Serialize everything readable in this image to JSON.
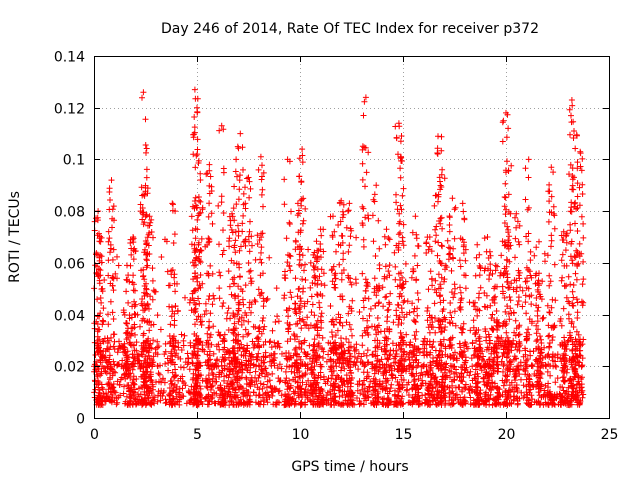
{
  "chart_data": {
    "type": "scatter",
    "title": "Day 246 of 2014, Rate Of TEC Index for receiver p372",
    "xlabel": "GPS time / hours",
    "ylabel": "ROTI / TECUs",
    "xlim": [
      0,
      25
    ],
    "ylim": [
      0,
      0.14
    ],
    "grid": true,
    "marker": "+",
    "marker_color": "#ff0000",
    "x_ticks": [
      0,
      5,
      10,
      15,
      20,
      25
    ],
    "x_tick_labels": [
      "0",
      "5",
      "10",
      "15",
      "20",
      "25"
    ],
    "y_ticks": [
      0,
      0.02,
      0.04,
      0.06,
      0.08,
      0.1,
      0.12,
      0.14
    ],
    "y_tick_labels": [
      "0",
      "0.02",
      "0.04",
      "0.06",
      "0.08",
      "0.1",
      "0.12",
      "0.14"
    ],
    "data_extent_hours": [
      0,
      23.75
    ],
    "baseline_band": [
      0.005,
      0.03
    ],
    "peaks": [
      {
        "x": 0.2,
        "y": 0.08
      },
      {
        "x": 0.3,
        "y": 0.063
      },
      {
        "x": 0.85,
        "y": 0.092
      },
      {
        "x": 1.6,
        "y": 0.059
      },
      {
        "x": 1.9,
        "y": 0.07
      },
      {
        "x": 2.4,
        "y": 0.126
      },
      {
        "x": 2.5,
        "y": 0.089
      },
      {
        "x": 2.7,
        "y": 0.078
      },
      {
        "x": 3.8,
        "y": 0.083
      },
      {
        "x": 4.9,
        "y": 0.127
      },
      {
        "x": 5.0,
        "y": 0.12
      },
      {
        "x": 5.1,
        "y": 0.084
      },
      {
        "x": 5.6,
        "y": 0.098
      },
      {
        "x": 6.2,
        "y": 0.113
      },
      {
        "x": 6.7,
        "y": 0.079
      },
      {
        "x": 6.9,
        "y": 0.1
      },
      {
        "x": 7.1,
        "y": 0.11
      },
      {
        "x": 7.5,
        "y": 0.093
      },
      {
        "x": 8.1,
        "y": 0.101
      },
      {
        "x": 9.4,
        "y": 0.1
      },
      {
        "x": 9.9,
        "y": 0.083
      },
      {
        "x": 10.1,
        "y": 0.104
      },
      {
        "x": 10.7,
        "y": 0.064
      },
      {
        "x": 11.0,
        "y": 0.073
      },
      {
        "x": 11.6,
        "y": 0.078
      },
      {
        "x": 12.0,
        "y": 0.084
      },
      {
        "x": 12.4,
        "y": 0.083
      },
      {
        "x": 13.2,
        "y": 0.124
      },
      {
        "x": 13.7,
        "y": 0.09
      },
      {
        "x": 14.2,
        "y": 0.073
      },
      {
        "x": 14.8,
        "y": 0.114
      },
      {
        "x": 14.9,
        "y": 0.101
      },
      {
        "x": 15.6,
        "y": 0.078
      },
      {
        "x": 16.3,
        "y": 0.07
      },
      {
        "x": 16.7,
        "y": 0.109
      },
      {
        "x": 16.9,
        "y": 0.096
      },
      {
        "x": 17.4,
        "y": 0.085
      },
      {
        "x": 17.9,
        "y": 0.083
      },
      {
        "x": 18.6,
        "y": 0.067
      },
      {
        "x": 19.1,
        "y": 0.07
      },
      {
        "x": 19.5,
        "y": 0.059
      },
      {
        "x": 20.0,
        "y": 0.118
      },
      {
        "x": 20.1,
        "y": 0.112
      },
      {
        "x": 20.5,
        "y": 0.079
      },
      {
        "x": 21.1,
        "y": 0.1
      },
      {
        "x": 21.6,
        "y": 0.056
      },
      {
        "x": 22.2,
        "y": 0.097
      },
      {
        "x": 22.8,
        "y": 0.072
      },
      {
        "x": 23.2,
        "y": 0.123
      },
      {
        "x": 23.3,
        "y": 0.111
      },
      {
        "x": 23.6,
        "y": 0.103
      }
    ]
  }
}
